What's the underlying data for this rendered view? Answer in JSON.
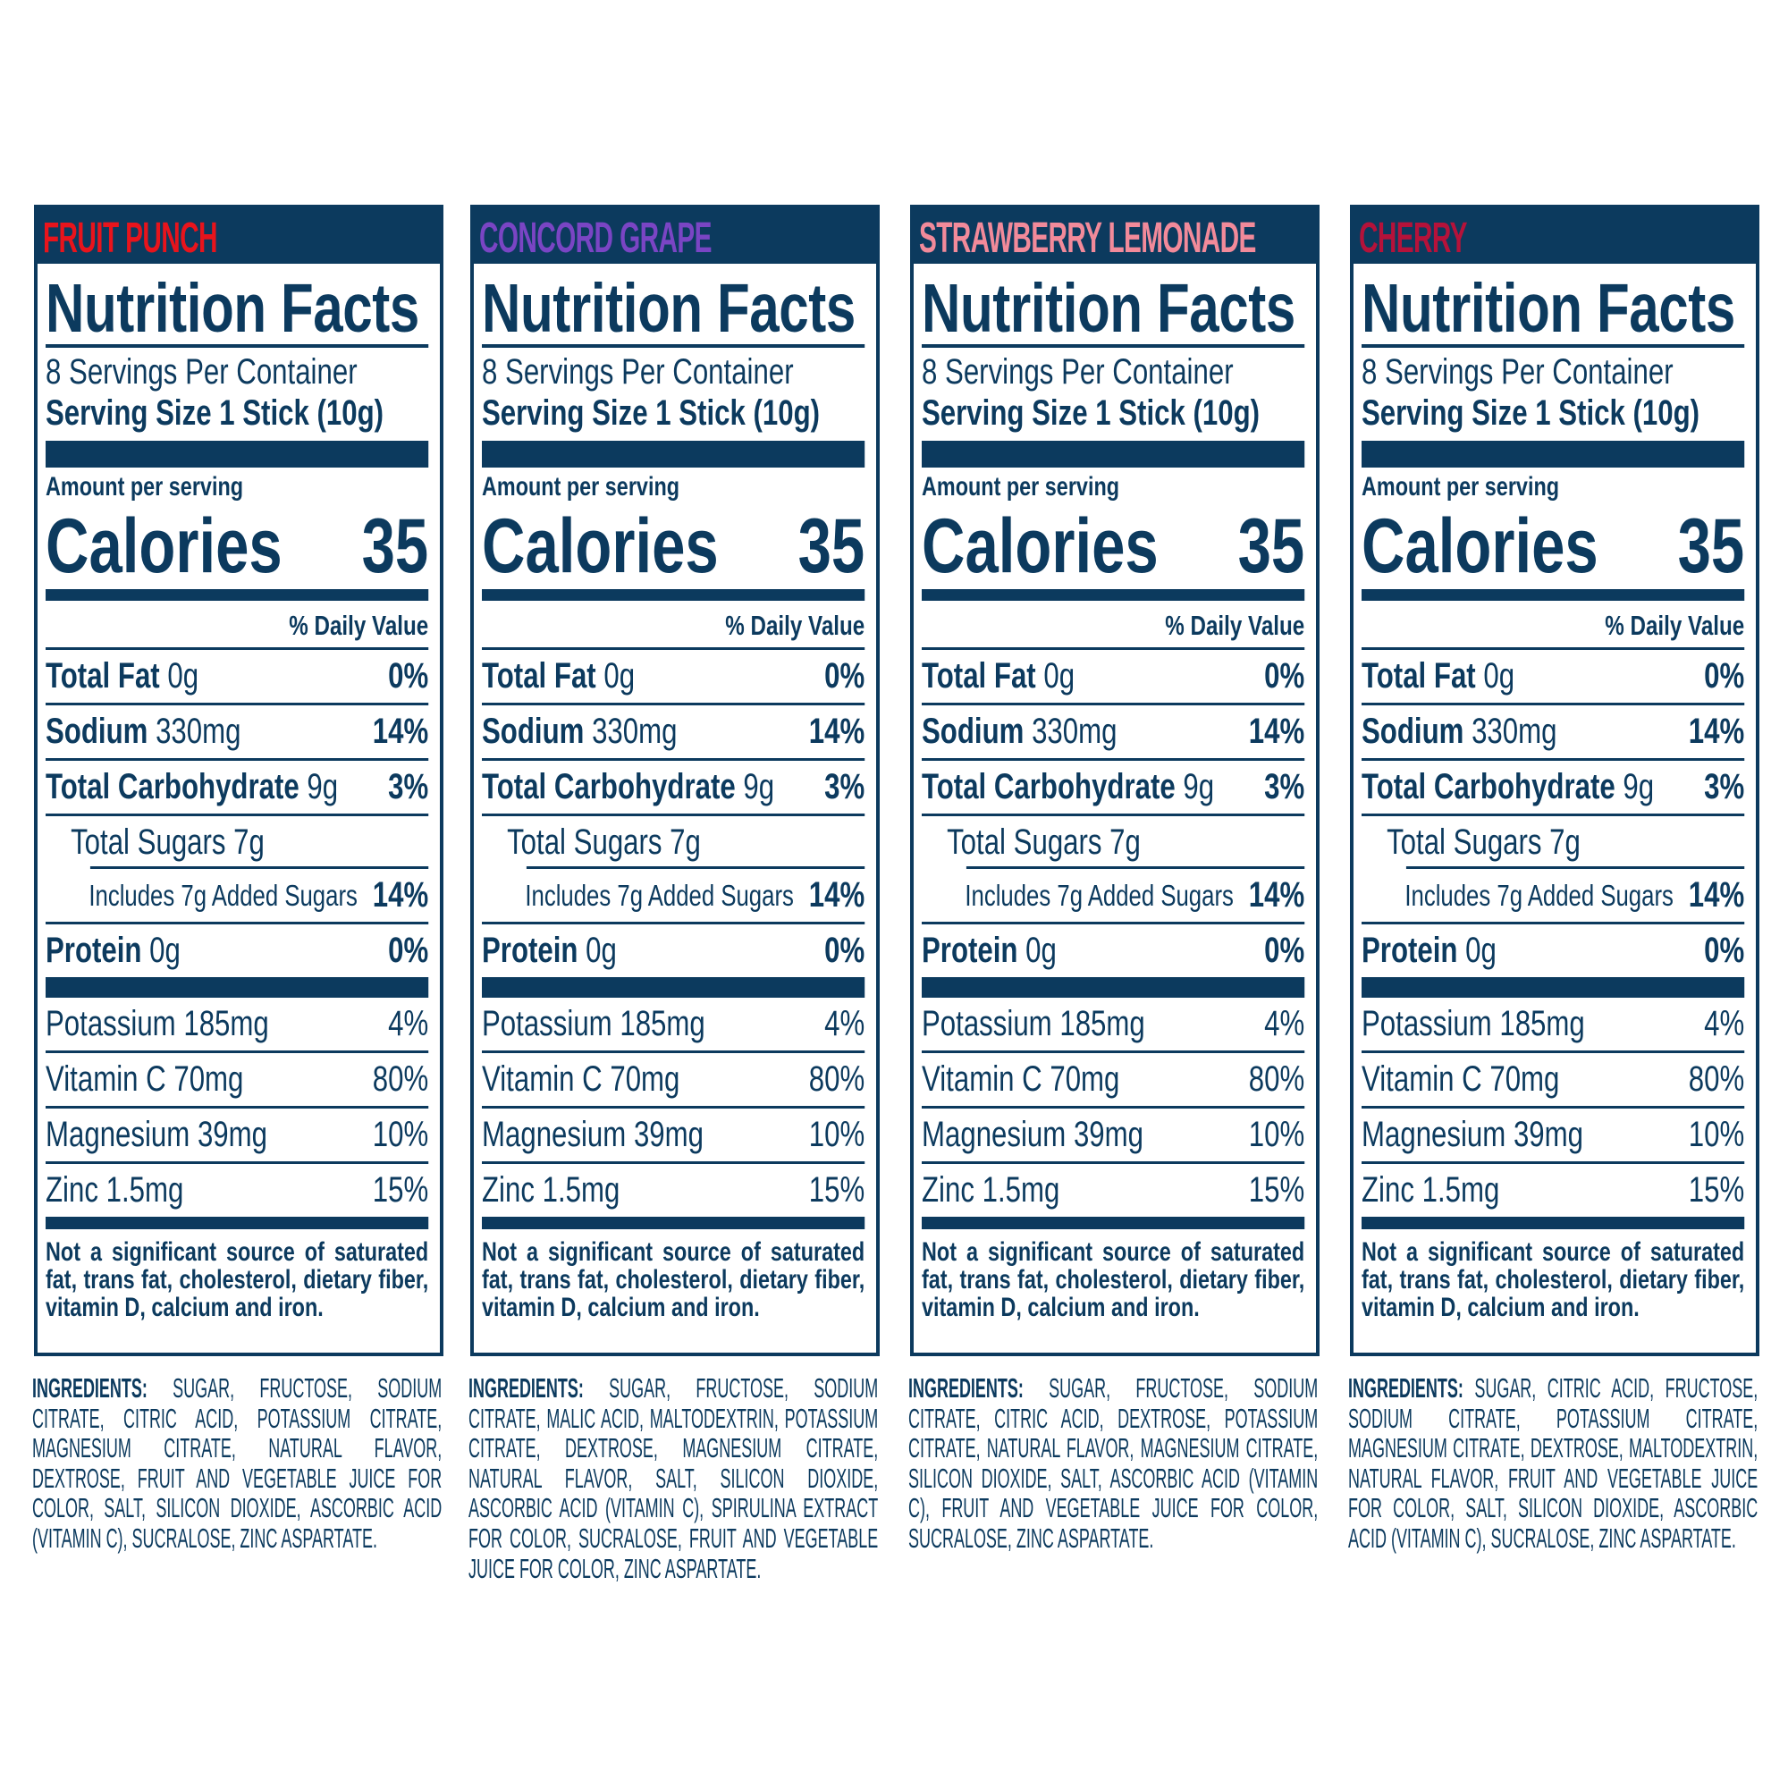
{
  "label": {
    "title": "Nutrition Facts",
    "servings": "8 Servings Per Container",
    "serving_size_label": "Serving Size",
    "serving_size_value": "1 Stick (10g)",
    "amount_per_serving": "Amount per serving",
    "calories_label": "Calories",
    "calories_value": "35",
    "daily_value_header": "% Daily Value",
    "nutrients": [
      {
        "name": "Total Fat",
        "amount": "0g",
        "dv": "0%",
        "bold": true,
        "indent": 0
      },
      {
        "name": "Sodium",
        "amount": "330mg",
        "dv": "14%",
        "bold": true,
        "indent": 0
      },
      {
        "name": "Total Carbohydrate",
        "amount": "9g",
        "dv": "3%",
        "bold": true,
        "indent": 0
      },
      {
        "name": "Total Sugars",
        "amount": "7g",
        "dv": "",
        "bold": false,
        "indent": 1
      },
      {
        "name": "Includes 7g Added Sugars",
        "amount": "",
        "dv": "14%",
        "bold": false,
        "indent": 2
      },
      {
        "name": "Protein",
        "amount": "0g",
        "dv": "0%",
        "bold": true,
        "indent": 0
      }
    ],
    "minerals": [
      {
        "name": "Potassium",
        "amount": "185mg",
        "dv": "4%"
      },
      {
        "name": "Vitamin C",
        "amount": "70mg",
        "dv": "80%"
      },
      {
        "name": "Magnesium",
        "amount": "39mg",
        "dv": "10%"
      },
      {
        "name": "Zinc",
        "amount": "1.5mg",
        "dv": "15%"
      }
    ],
    "footnote": "Not a significant source of saturated fat, trans fat, cholesterol, dietary fiber, vitamin D, calcium and iron."
  },
  "ingredients_label": "INGREDIENTS:",
  "panels": [
    {
      "flavor": "FRUIT PUNCH",
      "color": "#e8141c",
      "ingredients": "SUGAR, FRUCTOSE, SODIUM CITRATE, CITRIC ACID, POTASSIUM CITRATE, MAGNESIUM CITRATE, NATURAL FLAVOR, DEXTROSE, FRUIT AND VEGETABLE JUICE FOR COLOR, SALT, SILICON DIOXIDE, ASCORBIC ACID (VITAMIN C), SUCRALOSE, ZINC ASPARTATE."
    },
    {
      "flavor": "CONCORD GRAPE",
      "color": "#7a45c4",
      "ingredients": "SUGAR, FRUCTOSE, SODIUM CITRATE, MALIC ACID, MALTODEXTRIN, POTASSIUM CITRATE, DEXTROSE, MAGNESIUM CITRATE, NATURAL FLAVOR, SALT, SILICON DIOXIDE, ASCORBIC ACID (VITAMIN C), SPIRULINA EXTRACT FOR COLOR, SUCRALOSE, FRUIT AND VEGETABLE JUICE FOR COLOR, ZINC ASPARTATE."
    },
    {
      "flavor": "STRAWBERRY LEMONADE",
      "color": "#f28a9a",
      "ingredients": "SUGAR, FRUCTOSE, SODIUM CITRATE, CITRIC ACID, DEXTROSE, POTASSIUM CITRATE, NATURAL FLAVOR, MAGNESIUM CITRATE, SILICON DIOXIDE, SALT, ASCORBIC ACID (VITAMIN C), FRUIT AND VEGETABLE JUICE FOR COLOR, SUCRALOSE, ZINC ASPARTATE."
    },
    {
      "flavor": "CHERRY",
      "color": "#b5123a",
      "ingredients": "SUGAR, CITRIC ACID, FRUCTOSE, SODIUM CITRATE, POTASSIUM CITRATE, MAGNESIUM CITRATE, DEXTROSE, MALTODEXTRIN, NATURAL FLAVOR, FRUIT AND VEGETABLE JUICE FOR COLOR, SALT, SILICON DIOXIDE, ASCORBIC ACID (VITAMIN C), SUCRALOSE, ZINC ASPARTATE."
    }
  ]
}
